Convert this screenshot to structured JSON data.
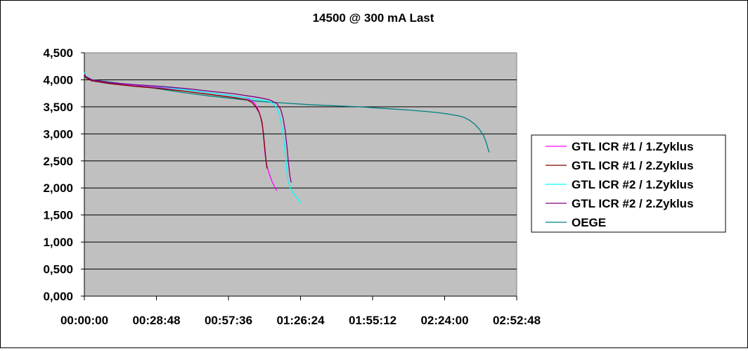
{
  "chart_data": {
    "type": "line",
    "title": "14500 @ 300 mA Last",
    "xlabel": "",
    "ylabel": "",
    "x_ticks": [
      "00:00:00",
      "00:28:48",
      "00:57:36",
      "01:26:24",
      "01:55:12",
      "02:24:00",
      "02:52:48"
    ],
    "y_ticks": [
      "0,000",
      "0,500",
      "1,000",
      "1,500",
      "2,000",
      "2,500",
      "3,000",
      "3,500",
      "4,000",
      "4,500"
    ],
    "xlim_minutes": [
      0,
      172.8
    ],
    "ylim": [
      0,
      4.5
    ],
    "grid": "horizontal",
    "plot_background": "#c0c0c0",
    "legend_position": "right",
    "x_unit": "minutes",
    "series": [
      {
        "name": "GTL ICR #1 / 1.Zyklus",
        "color": "#ff00ff",
        "points": [
          [
            0,
            4.12
          ],
          [
            0.5,
            4.05
          ],
          [
            3,
            3.99
          ],
          [
            10,
            3.94
          ],
          [
            20,
            3.9
          ],
          [
            30,
            3.86
          ],
          [
            40,
            3.82
          ],
          [
            50,
            3.76
          ],
          [
            60,
            3.7
          ],
          [
            64,
            3.67
          ],
          [
            66,
            3.64
          ],
          [
            68,
            3.57
          ],
          [
            69.5,
            3.45
          ],
          [
            70.5,
            3.3
          ],
          [
            71.3,
            3.1
          ],
          [
            71.8,
            2.85
          ],
          [
            72.3,
            2.6
          ],
          [
            73,
            2.4
          ],
          [
            74,
            2.25
          ],
          [
            75,
            2.12
          ],
          [
            76.5,
            1.98
          ],
          [
            77,
            1.95
          ]
        ]
      },
      {
        "name": "GTL ICR #1 / 2.Zyklus",
        "color": "#800000",
        "points": [
          [
            0,
            4.1
          ],
          [
            0.5,
            4.04
          ],
          [
            3,
            3.98
          ],
          [
            10,
            3.93
          ],
          [
            20,
            3.88
          ],
          [
            30,
            3.84
          ],
          [
            40,
            3.79
          ],
          [
            50,
            3.73
          ],
          [
            60,
            3.67
          ],
          [
            65,
            3.63
          ],
          [
            67,
            3.58
          ],
          [
            68.5,
            3.5
          ],
          [
            70,
            3.38
          ],
          [
            71,
            3.22
          ],
          [
            71.6,
            3.0
          ],
          [
            72.1,
            2.75
          ],
          [
            72.6,
            2.5
          ],
          [
            73,
            2.36
          ]
        ]
      },
      {
        "name": "GTL ICR #2 / 1.Zyklus",
        "color": "#00ffff",
        "points": [
          [
            0,
            4.13
          ],
          [
            0.5,
            4.07
          ],
          [
            3,
            4.0
          ],
          [
            10,
            3.95
          ],
          [
            20,
            3.91
          ],
          [
            30,
            3.87
          ],
          [
            40,
            3.82
          ],
          [
            50,
            3.76
          ],
          [
            60,
            3.7
          ],
          [
            70,
            3.63
          ],
          [
            74,
            3.6
          ],
          [
            76,
            3.54
          ],
          [
            77.5,
            3.42
          ],
          [
            78.5,
            3.25
          ],
          [
            79.5,
            3.0
          ],
          [
            80.2,
            2.7
          ],
          [
            80.8,
            2.4
          ],
          [
            81.3,
            2.15
          ],
          [
            82.5,
            1.98
          ],
          [
            84,
            1.87
          ],
          [
            86.5,
            1.72
          ]
        ]
      },
      {
        "name": "GTL ICR #2 / 2.Zyklus",
        "color": "#800080",
        "points": [
          [
            0,
            4.11
          ],
          [
            0.5,
            4.06
          ],
          [
            3,
            4.0
          ],
          [
            10,
            3.95
          ],
          [
            20,
            3.91
          ],
          [
            30,
            3.88
          ],
          [
            40,
            3.84
          ],
          [
            50,
            3.79
          ],
          [
            60,
            3.74
          ],
          [
            70,
            3.67
          ],
          [
            74,
            3.63
          ],
          [
            77,
            3.56
          ],
          [
            78.5,
            3.45
          ],
          [
            79.5,
            3.28
          ],
          [
            80.3,
            3.05
          ],
          [
            81,
            2.75
          ],
          [
            81.6,
            2.45
          ],
          [
            82.2,
            2.2
          ],
          [
            82.7,
            2.1
          ]
        ]
      },
      {
        "name": "OEGE",
        "color": "#008080",
        "points": [
          [
            0,
            4.14
          ],
          [
            0.5,
            4.07
          ],
          [
            3,
            4.0
          ],
          [
            10,
            3.96
          ],
          [
            20,
            3.9
          ],
          [
            30,
            3.83
          ],
          [
            40,
            3.76
          ],
          [
            50,
            3.7
          ],
          [
            60,
            3.65
          ],
          [
            70,
            3.6
          ],
          [
            80,
            3.57
          ],
          [
            90,
            3.54
          ],
          [
            100,
            3.52
          ],
          [
            110,
            3.5
          ],
          [
            120,
            3.47
          ],
          [
            130,
            3.44
          ],
          [
            140,
            3.4
          ],
          [
            145,
            3.37
          ],
          [
            150,
            3.33
          ],
          [
            152,
            3.3
          ],
          [
            154,
            3.25
          ],
          [
            156,
            3.18
          ],
          [
            158,
            3.08
          ],
          [
            159.5,
            2.97
          ],
          [
            160.5,
            2.86
          ],
          [
            161.5,
            2.7
          ],
          [
            161.8,
            2.66
          ]
        ]
      }
    ]
  }
}
